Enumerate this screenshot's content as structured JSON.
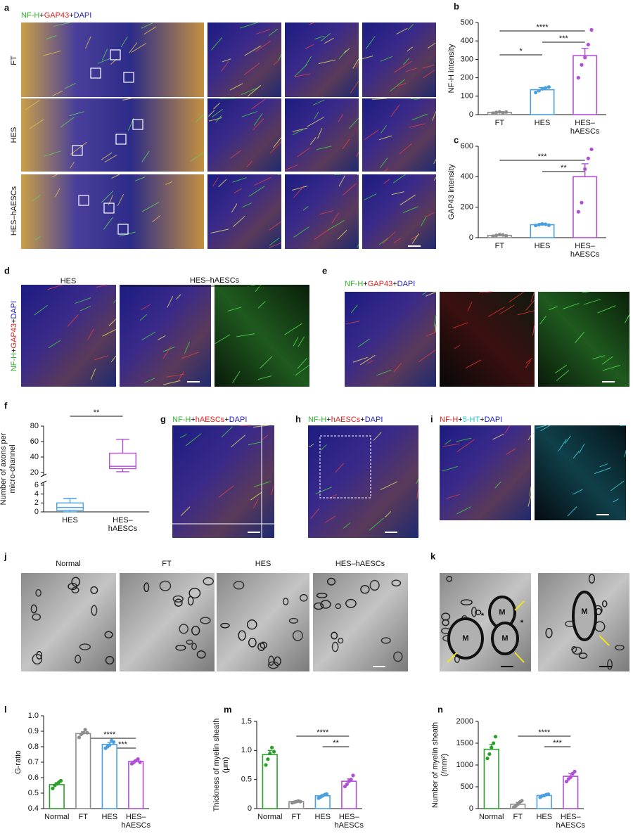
{
  "figure": {
    "a": {
      "panel": "a",
      "stain": [
        {
          "text": "NF-H",
          "color": "#2bb52b"
        },
        {
          "text": "+",
          "color": "#111111"
        },
        {
          "text": "GAP43",
          "color": "#e02020"
        },
        {
          "text": "+",
          "color": "#111111"
        },
        {
          "text": "DAPI",
          "color": "#2020c8"
        }
      ],
      "rows": [
        "FT",
        "HES",
        "HES–hAESCs"
      ]
    },
    "d": {
      "panel": "d",
      "groups": [
        "HES",
        "HES–hAESCs"
      ],
      "stain": [
        {
          "text": "NF-H",
          "color": "#2bb52b"
        },
        {
          "text": "+",
          "color": "#111111"
        },
        {
          "text": "GAP43",
          "color": "#e02020"
        },
        {
          "text": "+",
          "color": "#111111"
        },
        {
          "text": "DAPI",
          "color": "#2020c8"
        }
      ]
    },
    "e": {
      "panel": "e",
      "stain": [
        {
          "text": "NF-H",
          "color": "#2bb52b"
        },
        {
          "text": "+",
          "color": "#111111"
        },
        {
          "text": "GAP43",
          "color": "#e02020"
        },
        {
          "text": "+",
          "color": "#111111"
        },
        {
          "text": "DAPI",
          "color": "#2020c8"
        }
      ]
    },
    "g": {
      "panel": "g",
      "stain": [
        {
          "text": "NF-H",
          "color": "#2bb52b"
        },
        {
          "text": "+",
          "color": "#111111"
        },
        {
          "text": "hAESCs",
          "color": "#e02020"
        },
        {
          "text": "+",
          "color": "#111111"
        },
        {
          "text": "DAPI",
          "color": "#2020c8"
        }
      ]
    },
    "h": {
      "panel": "h",
      "stain": [
        {
          "text": "NF-H",
          "color": "#2bb52b"
        },
        {
          "text": "+",
          "color": "#111111"
        },
        {
          "text": "hAESCs",
          "color": "#e02020"
        },
        {
          "text": "+",
          "color": "#111111"
        },
        {
          "text": "DAPI",
          "color": "#2020c8"
        }
      ]
    },
    "i": {
      "panel": "i",
      "stain": [
        {
          "text": "NF-H",
          "color": "#e02020"
        },
        {
          "text": "+",
          "color": "#111111"
        },
        {
          "text": "5-HT",
          "color": "#20c8d8"
        },
        {
          "text": "+",
          "color": "#111111"
        },
        {
          "text": "DAPI",
          "color": "#2020c8"
        }
      ]
    },
    "j": {
      "panel": "j",
      "groups": [
        "Normal",
        "FT",
        "HES",
        "HES–hAESCs"
      ]
    },
    "k": {
      "panel": "k",
      "annotations": [
        "M",
        "M",
        "M",
        "M",
        "*",
        "*"
      ]
    }
  },
  "chart_data": [
    {
      "type": "bar",
      "panel": "b",
      "ylabel": [
        "NF-H intensity"
      ],
      "categories": [
        "FT",
        "HES",
        "HES–\nhAESCs"
      ],
      "values": [
        12,
        135,
        320
      ],
      "errors": [
        3,
        12,
        40
      ],
      "colors": [
        "#8c8c8c",
        "#4a9fe0",
        "#b14ed6"
      ],
      "points": [
        [
          8,
          12,
          15,
          10,
          14
        ],
        [
          120,
          130,
          140,
          145,
          150
        ],
        [
          200,
          270,
          310,
          380,
          460
        ]
      ],
      "ylim": [
        0,
        500
      ],
      "yticks": [
        0,
        100,
        200,
        300,
        400,
        500
      ],
      "significance": [
        "****",
        "***",
        "*"
      ]
    },
    {
      "type": "bar",
      "panel": "c",
      "ylabel": [
        "GAP43 intensity"
      ],
      "categories": [
        "FT",
        "HES",
        "HES–\nhAESCs"
      ],
      "values": [
        15,
        85,
        400
      ],
      "errors": [
        5,
        8,
        85
      ],
      "colors": [
        "#8c8c8c",
        "#4a9fe0",
        "#b14ed6"
      ],
      "points": [
        [
          10,
          15,
          20,
          18,
          12
        ],
        [
          80,
          85,
          90,
          88,
          82
        ],
        [
          170,
          230,
          450,
          520,
          580
        ]
      ],
      "ylim": [
        0,
        600
      ],
      "yticks": [
        0,
        200,
        400,
        600
      ],
      "significance": [
        "***",
        "**"
      ]
    },
    {
      "type": "box",
      "panel": "f",
      "ylabel": [
        "Number of  axons per",
        "micro-channel"
      ],
      "categories": [
        "HES",
        "HES–\nhAESCs"
      ],
      "min": [
        0,
        21
      ],
      "q1": [
        0.3,
        25
      ],
      "median": [
        1,
        28
      ],
      "q3": [
        2,
        45
      ],
      "max": [
        3,
        63
      ],
      "colors": [
        "#4a9fe0",
        "#b14ed6"
      ],
      "ylim": [
        0,
        80
      ],
      "ybreak": [
        6,
        20
      ],
      "yticks": [
        0,
        2,
        4,
        6,
        20,
        40,
        60,
        80
      ],
      "significance": [
        "**"
      ]
    },
    {
      "type": "bar",
      "panel": "l",
      "ylabel": [
        "G-ratio"
      ],
      "categories": [
        "Normal",
        "FT",
        "HES",
        "HES–\nhAESCs"
      ],
      "values": [
        0.555,
        0.885,
        0.815,
        0.705
      ],
      "errors": [
        0.012,
        0.012,
        0.012,
        0.008
      ],
      "colors": [
        "#2aa02a",
        "#8c8c8c",
        "#4a9fe0",
        "#b14ed6"
      ],
      "points": [
        [
          0.53,
          0.55,
          0.56,
          0.57,
          0.58
        ],
        [
          0.86,
          0.88,
          0.89,
          0.91,
          0.89
        ],
        [
          0.79,
          0.8,
          0.81,
          0.84,
          0.83
        ],
        [
          0.69,
          0.7,
          0.71,
          0.72,
          0.7
        ]
      ],
      "ylim": [
        0.4,
        1
      ],
      "yticks": [
        0.4,
        0.5,
        0.6,
        0.7,
        0.8,
        0.9,
        {
          "value": 1,
          "label": "1.0"
        }
      ],
      "significance": [
        "****",
        "***"
      ]
    },
    {
      "type": "bar",
      "panel": "m",
      "ylabel": [
        "Thickness of myelin sheath",
        "(μm)"
      ],
      "categories": [
        "Normal",
        "FT",
        "HES",
        "HES–\nhAESCs"
      ],
      "values": [
        0.93,
        0.12,
        0.22,
        0.47
      ],
      "errors": [
        0.07,
        0.01,
        0.02,
        0.04
      ],
      "colors": [
        "#2aa02a",
        "#8c8c8c",
        "#4a9fe0",
        "#b14ed6"
      ],
      "points": [
        [
          0.75,
          0.85,
          0.95,
          1.05,
          0.98
        ],
        [
          0.1,
          0.11,
          0.12,
          0.13,
          0.12
        ],
        [
          0.18,
          0.2,
          0.22,
          0.24,
          0.25
        ],
        [
          0.38,
          0.42,
          0.47,
          0.5,
          0.57
        ]
      ],
      "ylim": [
        0,
        1.5
      ],
      "yticks": [
        0,
        0.5,
        {
          "value": 1,
          "label": "1.0"
        },
        1.5
      ],
      "significance": [
        "****",
        "**"
      ]
    },
    {
      "type": "bar",
      "panel": "n",
      "ylabel": [
        "Number of myelin sheath",
        "(/mm²)"
      ],
      "categories": [
        "Normal",
        "FT",
        "HES",
        "HES–\nhAESCs"
      ],
      "values": [
        1360,
        100,
        300,
        740
      ],
      "errors": [
        110,
        40,
        20,
        60
      ],
      "colors": [
        "#2aa02a",
        "#8c8c8c",
        "#4a9fe0",
        "#b14ed6"
      ],
      "points": [
        [
          1150,
          1250,
          1400,
          1500,
          1650
        ],
        [
          30,
          60,
          100,
          150,
          180
        ],
        [
          260,
          290,
          300,
          320,
          330
        ],
        [
          620,
          680,
          720,
          800,
          850
        ]
      ],
      "ylim": [
        0,
        2000
      ],
      "yticks": [
        0,
        500,
        1000,
        1500,
        2000
      ],
      "significance": [
        "****",
        "***"
      ]
    }
  ]
}
